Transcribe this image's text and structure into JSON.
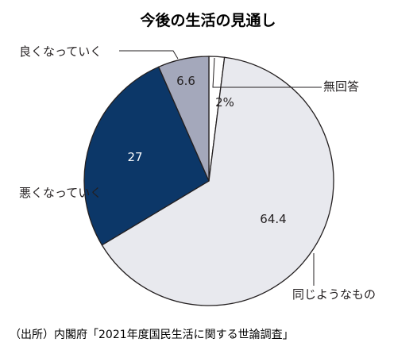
{
  "chart_data": {
    "type": "pie",
    "title": "今後の生活の見通し",
    "slices": [
      {
        "label": "無回答",
        "value": 2,
        "value_label": "2%",
        "color": "#ffffff",
        "text_color": "#231f20"
      },
      {
        "label": "同じようなもの",
        "value": 64.4,
        "value_label": "64.4",
        "color": "#e8e9ee",
        "text_color": "#231f20"
      },
      {
        "label": "悪くなっていく",
        "value": 27,
        "value_label": "27",
        "color": "#0c3768",
        "text_color": "#ffffff"
      },
      {
        "label": "良くなっていく",
        "value": 6.6,
        "value_label": "6.6",
        "color": "#a4a8bb",
        "text_color": "#231f20"
      }
    ],
    "source": "（出所）内閣府「2021年度国民生活に関する世論調査」"
  }
}
